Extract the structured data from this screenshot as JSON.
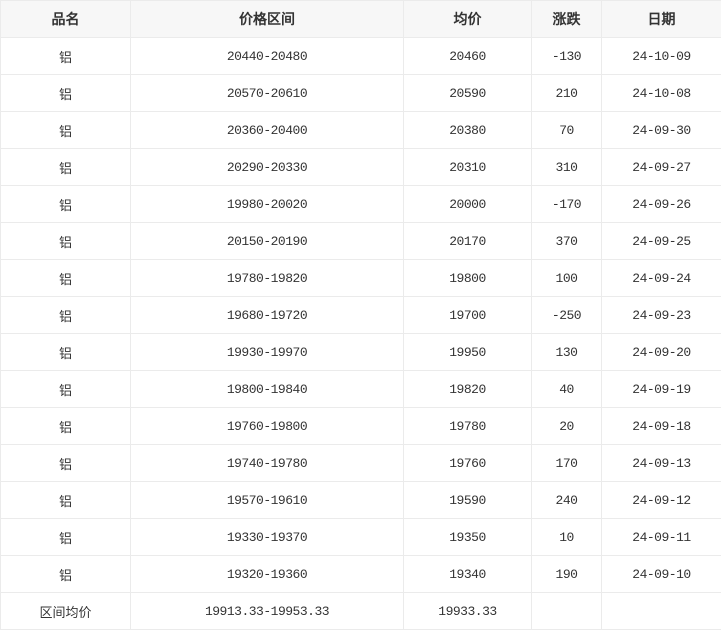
{
  "headers": [
    "品名",
    "价格区间",
    "均价",
    "涨跌",
    "日期"
  ],
  "rows": [
    [
      "铝",
      "20440-20480",
      "20460",
      "-130",
      "24-10-09"
    ],
    [
      "铝",
      "20570-20610",
      "20590",
      "210",
      "24-10-08"
    ],
    [
      "铝",
      "20360-20400",
      "20380",
      "70",
      "24-09-30"
    ],
    [
      "铝",
      "20290-20330",
      "20310",
      "310",
      "24-09-27"
    ],
    [
      "铝",
      "19980-20020",
      "20000",
      "-170",
      "24-09-26"
    ],
    [
      "铝",
      "20150-20190",
      "20170",
      "370",
      "24-09-25"
    ],
    [
      "铝",
      "19780-19820",
      "19800",
      "100",
      "24-09-24"
    ],
    [
      "铝",
      "19680-19720",
      "19700",
      "-250",
      "24-09-23"
    ],
    [
      "铝",
      "19930-19970",
      "19950",
      "130",
      "24-09-20"
    ],
    [
      "铝",
      "19800-19840",
      "19820",
      "40",
      "24-09-19"
    ],
    [
      "铝",
      "19760-19800",
      "19780",
      "20",
      "24-09-18"
    ],
    [
      "铝",
      "19740-19780",
      "19760",
      "170",
      "24-09-13"
    ],
    [
      "铝",
      "19570-19610",
      "19590",
      "240",
      "24-09-12"
    ],
    [
      "铝",
      "19330-19370",
      "19350",
      "10",
      "24-09-11"
    ],
    [
      "铝",
      "19320-19360",
      "19340",
      "190",
      "24-09-10"
    ]
  ],
  "summary": {
    "label": "区间均价",
    "range": "19913.33-19953.33",
    "avg": "19933.33",
    "change": "",
    "date": ""
  }
}
